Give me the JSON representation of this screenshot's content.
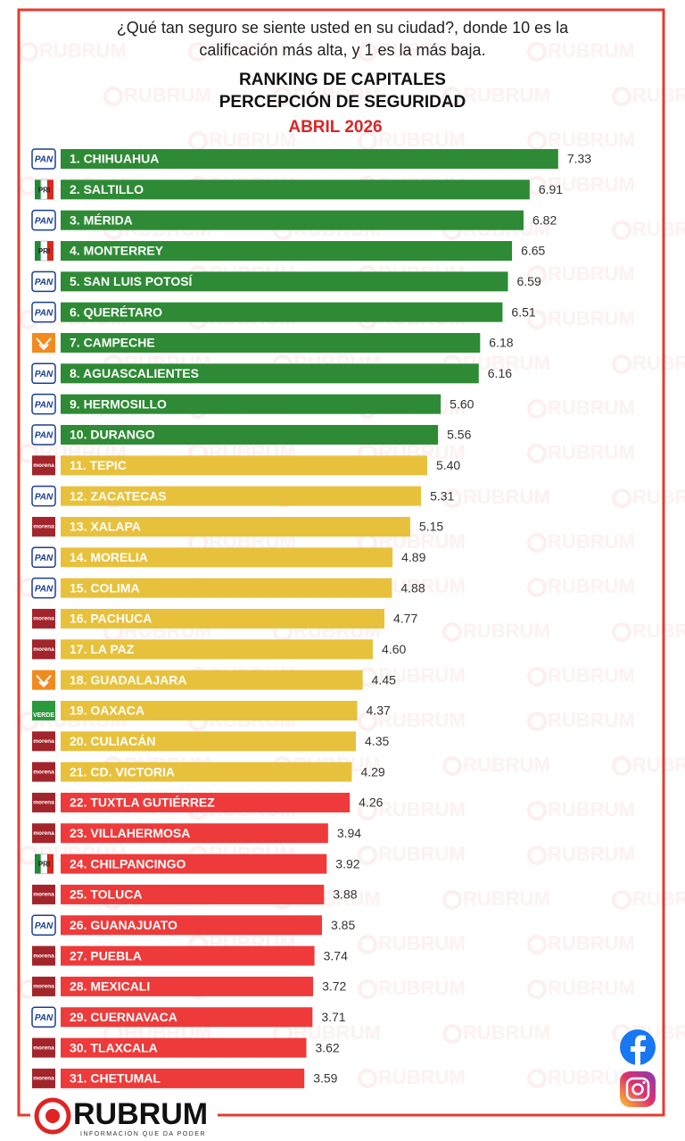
{
  "question": [
    "¿Qué tan seguro se siente usted en su ciudad?, donde 10 es la",
    "calificación más alta, y  1 es la más baja."
  ],
  "brand": "RUBRUM",
  "tagline": "INFORMACIÓN QUE DA PODER",
  "chart_data": {
    "type": "hbar",
    "title": [
      "RANKING DE CAPITALES",
      "PERCEPCIÓN DE SEGURIDAD"
    ],
    "subtitle": "ABRIL 2026",
    "categories": [
      "1. CHIHUAHUA",
      "2. SALTILLO",
      "3. MÉRIDA",
      "4. MONTERREY",
      "5. SAN LUIS POTOSÍ",
      "6. QUERÉTARO",
      "7. CAMPECHE",
      "8. AGUASCALIENTES",
      "9. HERMOSILLO",
      "10. DURANGO",
      "11. TEPIC",
      "12. ZACATECAS",
      "13. XALAPA",
      "14. MORELIA",
      "15. COLIMA",
      "16. PACHUCA",
      "17. LA PAZ",
      "18. GUADALAJARA",
      "19. OAXACA",
      "20. CULIACÁN",
      "21. CD. VICTORIA",
      "22. TUXTLA GUTIÉRREZ",
      "23. VILLAHERMOSA",
      "24. CHILPANCINGO",
      "25. TOLUCA",
      "26. GUANAJUATO",
      "27. PUEBLA",
      "28. MEXICALI",
      "29. CUERNAVACA",
      "30. TLAXCALA",
      "31. CHETUMAL"
    ],
    "values": [
      7.33,
      6.91,
      6.82,
      6.65,
      6.59,
      6.51,
      6.18,
      6.16,
      5.6,
      5.56,
      5.4,
      5.31,
      5.15,
      4.89,
      4.88,
      4.77,
      4.6,
      4.45,
      4.37,
      4.35,
      4.29,
      4.26,
      3.94,
      3.92,
      3.88,
      3.85,
      3.74,
      3.72,
      3.71,
      3.62,
      3.59
    ],
    "value_labels": [
      "7.33",
      "6.91",
      "6.82",
      "6.65",
      "6.59",
      "6.51",
      "6.18",
      "6.16",
      "5.60",
      "5.56",
      "5.40",
      "5.31",
      "5.15",
      "4.89",
      "4.88",
      "4.77",
      "4.60",
      "4.45",
      "4.37",
      "4.35",
      "4.29",
      "4.26",
      "3.94",
      "3.92",
      "3.88",
      "3.85",
      "3.74",
      "3.72",
      "3.71",
      "3.62",
      "3.59"
    ],
    "parties": [
      "PAN",
      "PRI",
      "PAN",
      "PRI",
      "PAN",
      "PAN",
      null,
      "PAN",
      "PAN",
      "PAN",
      "morena",
      "PAN",
      "morena",
      "PAN",
      "PAN",
      "morena",
      "morena",
      null,
      "VERDE",
      "morena",
      "morena",
      "morena",
      "morena",
      "PRI",
      "morena",
      "PAN",
      "morena",
      "morena",
      "PAN",
      "morena",
      "morena"
    ],
    "colors": [
      "#2e8a35",
      "#2e8a35",
      "#2e8a35",
      "#2e8a35",
      "#2e8a35",
      "#2e8a35",
      "#2e8a35",
      "#2e8a35",
      "#2e8a35",
      "#2e8a35",
      "#e8c13c",
      "#e8c13c",
      "#e8c13c",
      "#e8c13c",
      "#e8c13c",
      "#e8c13c",
      "#e8c13c",
      "#e8c13c",
      "#e8c13c",
      "#e8c13c",
      "#e8c13c",
      "#ee3a3a",
      "#ee3a3a",
      "#ee3a3a",
      "#ee3a3a",
      "#ee3a3a",
      "#ee3a3a",
      "#ee3a3a",
      "#ee3a3a",
      "#ee3a3a",
      "#ee3a3a"
    ]
  }
}
